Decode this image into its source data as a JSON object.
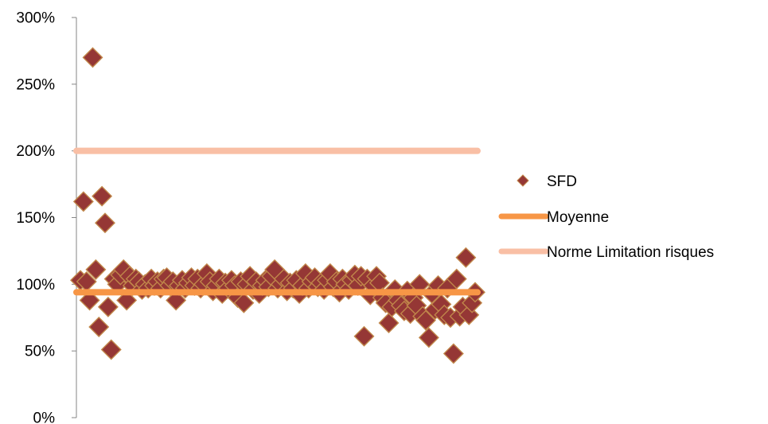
{
  "chart_data": {
    "type": "scatter",
    "title": "",
    "xlabel": "",
    "ylabel": "",
    "ylim": [
      0,
      3
    ],
    "yticks": [
      {
        "value": 0,
        "label": "0%"
      },
      {
        "value": 0.5,
        "label": "50%"
      },
      {
        "value": 1.0,
        "label": "100%"
      },
      {
        "value": 1.5,
        "label": "150%"
      },
      {
        "value": 2.0,
        "label": "200%"
      },
      {
        "value": 2.5,
        "label": "250%"
      },
      {
        "value": 3.0,
        "label": "300%"
      }
    ],
    "grid": false,
    "legend_position": "right",
    "series": [
      {
        "name": "SFD",
        "kind": "scatter",
        "marker": "diamond",
        "color": "#953735",
        "edge_color": "#c0864a",
        "y": [
          1.03,
          1.62,
          1.02,
          0.88,
          2.7,
          1.11,
          0.68,
          1.66,
          1.46,
          0.83,
          0.51,
          1.04,
          1.0,
          1.07,
          1.11,
          0.88,
          1.06,
          0.99,
          1.04,
          1.02,
          0.96,
          1.0,
          0.97,
          1.04,
          0.99,
          1.02,
          0.97,
          1.04,
          1.05,
          0.99,
          1.02,
          0.88,
          0.99,
          1.03,
          0.97,
          1.01,
          1.05,
          0.99,
          1.04,
          0.97,
          1.0,
          1.08,
          1.02,
          0.95,
          0.99,
          1.04,
          0.93,
          1.01,
          0.97,
          1.03,
          0.99,
          0.9,
          1.02,
          0.86,
          1.0,
          1.06,
          0.96,
          1.02,
          0.93,
          0.99,
          1.03,
          0.98,
          1.06,
          1.11,
          0.97,
          1.0,
          1.04,
          0.95,
          1.01,
          0.97,
          1.03,
          0.93,
          0.99,
          1.08,
          0.97,
          1.02,
          1.05,
          0.98,
          1.01,
          0.96,
          1.03,
          1.08,
          0.98,
          1.02,
          0.94,
          1.04,
          1.0,
          0.96,
          1.03,
          1.07,
          0.99,
          1.06,
          0.61,
          1.04,
          0.92,
          0.99,
          1.06,
          1.01,
          0.9,
          0.86,
          0.71,
          0.83,
          0.96,
          0.88,
          0.84,
          0.8,
          0.95,
          0.78,
          0.9,
          0.84,
          1.0,
          0.76,
          0.73,
          0.6,
          0.93,
          0.81,
          0.99,
          0.85,
          0.77,
          0.97,
          0.75,
          0.48,
          1.04,
          0.76,
          0.83,
          1.2,
          0.77,
          0.86,
          0.94
        ]
      },
      {
        "name": "Moyenne",
        "kind": "line",
        "color": "#f79646",
        "value": 0.94
      },
      {
        "name": "Norme Limitation risques",
        "kind": "line",
        "color": "#f9bfa5",
        "value": 2.0
      }
    ]
  }
}
